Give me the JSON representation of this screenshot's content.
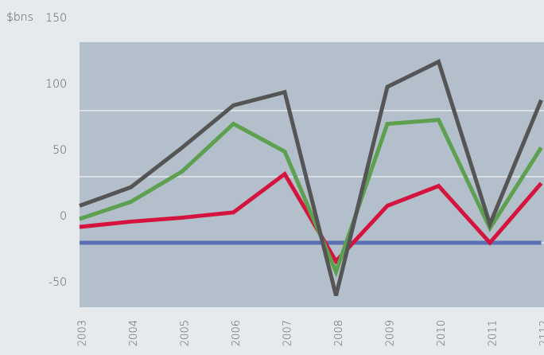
{
  "chart_data": {
    "type": "line",
    "y_label": "$bns",
    "categories": [
      "2003",
      "2004",
      "2005",
      "2006",
      "2007",
      "2008",
      "2009",
      "2010",
      "2011",
      "2112"
    ],
    "series": [
      {
        "color": "#5b6fb5",
        "values": [
          0,
          0,
          0,
          0,
          0,
          0,
          0,
          0,
          0,
          0
        ]
      },
      {
        "color": "#d4143f",
        "values": [
          12,
          16,
          19,
          23,
          52,
          -14,
          28,
          43,
          0,
          45
        ]
      },
      {
        "color": "#5da04f",
        "values": [
          18,
          31,
          54,
          90,
          69,
          -22,
          90,
          93,
          11,
          72
        ]
      },
      {
        "color": "#555555",
        "values": [
          28,
          42,
          72,
          104,
          114,
          -40,
          118,
          137,
          14,
          108
        ]
      }
    ],
    "ylim": [
      -50,
      150
    ],
    "yticks": [
      -50,
      0,
      50,
      100,
      150
    ],
    "grid": true
  }
}
